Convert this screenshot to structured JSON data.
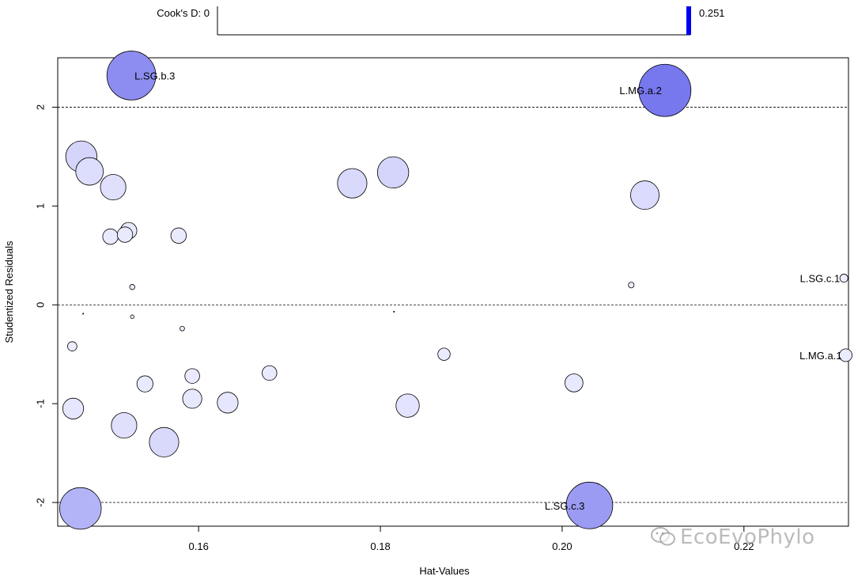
{
  "chart_data": {
    "type": "scatter",
    "xlabel": "Hat-Values",
    "ylabel": "Studentized Residuals",
    "xlim": [
      0.1445,
      0.2315
    ],
    "ylim": [
      -2.24,
      2.5
    ],
    "x_ticks": [
      0.16,
      0.18,
      0.2,
      0.22
    ],
    "x_tick_labels": [
      "0.16",
      "0.18",
      "0.20",
      "0.22"
    ],
    "y_ticks": [
      -2,
      -1,
      0,
      1,
      2
    ],
    "y_tick_labels": [
      "-2",
      "-1",
      "0",
      "1",
      "2"
    ],
    "reference_lines_y": [
      -2,
      0,
      2
    ],
    "grid": false,
    "cooks_scale": {
      "min_label": "Cook's D: 0",
      "max_label": "0.251",
      "min": 0,
      "max": 0.251
    },
    "colors": {
      "max_fill": "#7777ee",
      "min_fill": "#ececff",
      "scale_bar": "#0000ee",
      "stroke": "#000000"
    },
    "points": [
      {
        "x": 0.1526,
        "y": 2.32,
        "d": 0.22,
        "label": "L.SG.b.3"
      },
      {
        "x": 0.2113,
        "y": 2.17,
        "d": 0.251,
        "label": "L.MG.a.2"
      },
      {
        "x": 0.1471,
        "y": 1.5,
        "d": 0.09,
        "label": ""
      },
      {
        "x": 0.148,
        "y": 1.35,
        "d": 0.07,
        "label": ""
      },
      {
        "x": 0.1506,
        "y": 1.19,
        "d": 0.06,
        "label": ""
      },
      {
        "x": 0.1769,
        "y": 1.23,
        "d": 0.08,
        "label": ""
      },
      {
        "x": 0.1814,
        "y": 1.34,
        "d": 0.09,
        "label": ""
      },
      {
        "x": 0.2091,
        "y": 1.11,
        "d": 0.075,
        "label": ""
      },
      {
        "x": 0.1503,
        "y": 0.69,
        "d": 0.022,
        "label": ""
      },
      {
        "x": 0.1519,
        "y": 0.71,
        "d": 0.022,
        "label": ""
      },
      {
        "x": 0.1523,
        "y": 0.75,
        "d": 0.025,
        "label": ""
      },
      {
        "x": 0.1578,
        "y": 0.7,
        "d": 0.022,
        "label": ""
      },
      {
        "x": 0.1527,
        "y": 0.18,
        "d": 0.0025,
        "label": ""
      },
      {
        "x": 0.2076,
        "y": 0.2,
        "d": 0.003,
        "label": ""
      },
      {
        "x": 0.231,
        "y": 0.27,
        "d": 0.006,
        "label": "L.SG.c.1"
      },
      {
        "x": 0.1473,
        "y": -0.09,
        "d": 0.0001,
        "label": ""
      },
      {
        "x": 0.1527,
        "y": -0.12,
        "d": 0.0012,
        "label": ""
      },
      {
        "x": 0.1582,
        "y": -0.24,
        "d": 0.002,
        "label": ""
      },
      {
        "x": 0.1815,
        "y": -0.07,
        "d": 0.0001,
        "label": ""
      },
      {
        "x": 0.1461,
        "y": -0.42,
        "d": 0.008,
        "label": ""
      },
      {
        "x": 0.2312,
        "y": -0.51,
        "d": 0.015,
        "label": "L.MG.a.1"
      },
      {
        "x": 0.187,
        "y": -0.5,
        "d": 0.014,
        "label": ""
      },
      {
        "x": 0.1678,
        "y": -0.69,
        "d": 0.02,
        "label": ""
      },
      {
        "x": 0.1593,
        "y": -0.72,
        "d": 0.02,
        "label": ""
      },
      {
        "x": 0.1541,
        "y": -0.8,
        "d": 0.024,
        "label": ""
      },
      {
        "x": 0.2013,
        "y": -0.79,
        "d": 0.03,
        "label": ""
      },
      {
        "x": 0.1593,
        "y": -0.95,
        "d": 0.034,
        "label": ""
      },
      {
        "x": 0.1632,
        "y": -0.99,
        "d": 0.04,
        "label": ""
      },
      {
        "x": 0.1462,
        "y": -1.05,
        "d": 0.04,
        "label": ""
      },
      {
        "x": 0.183,
        "y": -1.02,
        "d": 0.05,
        "label": ""
      },
      {
        "x": 0.1518,
        "y": -1.22,
        "d": 0.06,
        "label": ""
      },
      {
        "x": 0.1562,
        "y": -1.39,
        "d": 0.08,
        "label": ""
      },
      {
        "x": 0.147,
        "y": -2.06,
        "d": 0.16,
        "label": ""
      },
      {
        "x": 0.203,
        "y": -2.03,
        "d": 0.2,
        "label": "L.SG.c.3"
      }
    ]
  },
  "watermark": {
    "text": "EcoEvoPhylo",
    "icon": "wechat-icon"
  }
}
